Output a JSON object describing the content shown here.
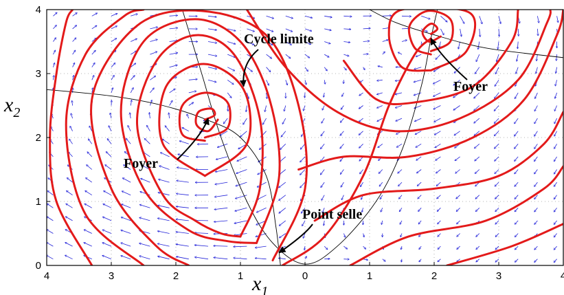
{
  "chart_data": {
    "type": "line",
    "title": "",
    "xlabel": "x",
    "xlabel_subscript": "1",
    "ylabel": "x",
    "ylabel_subscript": "2",
    "xlim": [
      -4,
      4
    ],
    "ylim": [
      0,
      4
    ],
    "x_tick_values": [
      -4,
      -3,
      -2,
      -1,
      0,
      1,
      2,
      3,
      4
    ],
    "x_tick_labels": [
      "4",
      "3",
      "2",
      "1",
      "0",
      "1",
      "2",
      "3",
      "4"
    ],
    "y_tick_values": [
      0,
      1,
      2,
      3,
      4
    ],
    "y_tick_labels": [
      "0",
      "1",
      "2",
      "3",
      "4"
    ],
    "grid": true,
    "colors": {
      "trajectories": "#e31a1a",
      "vector_field": "#1f1fd8",
      "nullclines": "#000000",
      "grid": "#9a9a9a"
    },
    "annotations": [
      {
        "text": "Cycle limite",
        "point_to": [
          -0.95,
          2.8
        ]
      },
      {
        "text": "Foyer",
        "point_to": [
          -1.5,
          2.3
        ]
      },
      {
        "text": "Foyer",
        "point_to": [
          1.95,
          3.55
        ]
      },
      {
        "text": "Point selle",
        "point_to": [
          -0.4,
          0.2
        ]
      }
    ],
    "equilibria": [
      {
        "kind": "focus",
        "x": -1.55,
        "y": 2.28
      },
      {
        "kind": "focus",
        "x": 1.95,
        "y": 3.62
      },
      {
        "kind": "saddle",
        "x": -0.4,
        "y": 0.1
      }
    ],
    "nullclines": [
      {
        "points": [
          [
            -4,
            2.75
          ],
          [
            -3,
            2.65
          ],
          [
            -2.2,
            2.5
          ],
          [
            -1.5,
            2.27
          ],
          [
            -1,
            2.0
          ],
          [
            -0.6,
            1.4
          ],
          [
            -0.45,
            0.6
          ],
          [
            -0.38,
            0.0
          ]
        ]
      },
      {
        "points": [
          [
            -1.9,
            4.0
          ],
          [
            -1.6,
            3.0
          ],
          [
            -1.3,
            2.0
          ],
          [
            -0.9,
            1.0
          ],
          [
            -0.5,
            0.35
          ],
          [
            0,
            0.02
          ],
          [
            0.5,
            0.3
          ],
          [
            1.1,
            1.0
          ],
          [
            1.5,
            1.8
          ],
          [
            1.8,
            2.8
          ],
          [
            1.95,
            3.55
          ],
          [
            2.05,
            4.0
          ]
        ]
      },
      {
        "points": [
          [
            1.0,
            4.0
          ],
          [
            1.4,
            3.8
          ],
          [
            1.95,
            3.62
          ],
          [
            2.8,
            3.4
          ],
          [
            4,
            3.25
          ]
        ]
      }
    ],
    "vector_field": {
      "grid_x": [
        -3.9,
        -3.6,
        -3.3,
        -3.0,
        -2.7,
        -2.4,
        -2.1,
        -1.8,
        -1.5,
        -1.2,
        -0.9,
        -0.6,
        -0.3,
        0.0,
        0.3,
        0.6,
        0.9,
        1.2,
        1.5,
        1.8,
        2.1,
        2.4,
        2.7,
        3.0,
        3.3,
        3.6,
        3.9
      ],
      "grid_y": [
        0.1,
        0.3,
        0.5,
        0.7,
        0.9,
        1.1,
        1.3,
        1.5,
        1.7,
        1.9,
        2.1,
        2.3,
        2.5,
        2.7,
        2.9,
        3.1,
        3.3,
        3.5,
        3.7,
        3.9
      ]
    },
    "series": [
      {
        "points": [
          [
            -1.55,
            2.28
          ],
          [
            -1.4,
            2.35
          ],
          [
            -1.45,
            2.45
          ],
          [
            -1.65,
            2.4
          ],
          [
            -1.68,
            2.2
          ],
          [
            -1.5,
            2.1
          ],
          [
            -1.35,
            2.28
          ]
        ]
      },
      {
        "points": [
          [
            -1.55,
            2.0
          ],
          [
            -1.2,
            2.15
          ],
          [
            -1.2,
            2.55
          ],
          [
            -1.55,
            2.7
          ],
          [
            -1.9,
            2.5
          ],
          [
            -1.9,
            2.05
          ],
          [
            -1.55,
            1.95
          ]
        ]
      },
      {
        "points": [
          [
            -1.55,
            1.4
          ],
          [
            -0.9,
            1.9
          ],
          [
            -0.95,
            2.75
          ],
          [
            -1.55,
            3.15
          ],
          [
            -2.15,
            2.8
          ],
          [
            -2.2,
            1.9
          ],
          [
            -1.55,
            1.4
          ]
        ]
      },
      {
        "points": [
          [
            -1.0,
            0.45
          ],
          [
            -0.7,
            1.2
          ],
          [
            -0.7,
            2.3
          ],
          [
            -1.1,
            3.3
          ],
          [
            -1.7,
            3.6
          ],
          [
            -2.3,
            3.2
          ],
          [
            -2.6,
            2.2
          ],
          [
            -2.2,
            1.1
          ],
          [
            -1.7,
            0.7
          ],
          [
            -1.3,
            0.5
          ],
          [
            -1.0,
            0.45
          ]
        ]
      },
      {
        "points": [
          [
            -0.75,
            0.35
          ],
          [
            -0.4,
            1.4
          ],
          [
            -0.55,
            2.6
          ],
          [
            -1.0,
            3.5
          ],
          [
            -1.7,
            3.85
          ],
          [
            -2.5,
            3.5
          ],
          [
            -2.85,
            2.4
          ],
          [
            -2.5,
            1.2
          ],
          [
            -1.8,
            0.55
          ],
          [
            -1.2,
            0.38
          ],
          [
            -0.75,
            0.35
          ]
        ]
      },
      {
        "points": [
          [
            -0.5,
            0.08
          ],
          [
            0.0,
            1.2
          ],
          [
            -0.1,
            2.5
          ],
          [
            -0.6,
            3.6
          ],
          [
            -1.6,
            3.98
          ],
          [
            -2.6,
            3.75
          ],
          [
            -3.3,
            2.6
          ],
          [
            -3.0,
            1.2
          ],
          [
            -2.3,
            0.3
          ],
          [
            -1.8,
            0.0
          ]
        ]
      },
      {
        "points": [
          [
            -2.5,
            0.0
          ],
          [
            -3.4,
            0.8
          ],
          [
            -3.7,
            2.2
          ],
          [
            -3.4,
            3.3
          ],
          [
            -2.8,
            3.9
          ],
          [
            -2.5,
            4.0
          ]
        ]
      },
      {
        "points": [
          [
            -3.3,
            0.0
          ],
          [
            -3.85,
            1.0
          ],
          [
            -3.95,
            2.0
          ],
          [
            -3.85,
            3.0
          ],
          [
            -3.7,
            3.8
          ],
          [
            -3.6,
            4.0
          ]
        ]
      },
      {
        "points": [
          [
            -0.35,
            0.0
          ],
          [
            0.3,
            0.45
          ],
          [
            0.9,
            1.4
          ],
          [
            1.3,
            2.5
          ],
          [
            1.7,
            3.3
          ],
          [
            1.95,
            3.55
          ]
        ]
      },
      {
        "points": [
          [
            1.95,
            3.62
          ],
          [
            2.05,
            3.7
          ],
          [
            1.95,
            3.78
          ],
          [
            1.82,
            3.65
          ],
          [
            1.92,
            3.5
          ],
          [
            2.1,
            3.58
          ]
        ]
      },
      {
        "points": [
          [
            1.95,
            3.35
          ],
          [
            2.25,
            3.5
          ],
          [
            2.25,
            3.85
          ],
          [
            1.9,
            3.98
          ],
          [
            1.62,
            3.75
          ],
          [
            1.7,
            3.4
          ],
          [
            1.95,
            3.3
          ]
        ]
      },
      {
        "points": [
          [
            1.95,
            3.05
          ],
          [
            2.5,
            3.35
          ],
          [
            2.55,
            3.95
          ],
          [
            1.5,
            4.0
          ],
          [
            1.3,
            3.6
          ],
          [
            1.5,
            3.1
          ],
          [
            1.95,
            3.05
          ]
        ]
      },
      {
        "points": [
          [
            0.6,
            3.2
          ],
          [
            1.1,
            2.6
          ],
          [
            1.7,
            2.55
          ],
          [
            2.6,
            2.8
          ],
          [
            3.2,
            3.5
          ],
          [
            3.3,
            4.0
          ]
        ]
      },
      {
        "points": [
          [
            -0.9,
            4.0
          ],
          [
            -0.3,
            3.1
          ],
          [
            0.5,
            2.4
          ],
          [
            1.4,
            2.1
          ],
          [
            2.4,
            2.3
          ],
          [
            3.3,
            2.9
          ],
          [
            3.75,
            3.8
          ],
          [
            3.8,
            4.0
          ]
        ]
      },
      {
        "points": [
          [
            -0.1,
            1.5
          ],
          [
            0.6,
            1.7
          ],
          [
            1.6,
            1.7
          ],
          [
            2.6,
            2.0
          ],
          [
            3.4,
            2.6
          ],
          [
            3.9,
            3.6
          ],
          [
            4.0,
            4.0
          ]
        ]
      },
      {
        "points": [
          [
            0.15,
            0.7
          ],
          [
            0.9,
            1.1
          ],
          [
            2.0,
            1.2
          ],
          [
            3.0,
            1.4
          ],
          [
            3.7,
            1.9
          ],
          [
            4.0,
            2.4
          ]
        ]
      },
      {
        "points": [
          [
            0.7,
            0.0
          ],
          [
            1.6,
            0.45
          ],
          [
            2.8,
            0.7
          ],
          [
            3.7,
            1.2
          ],
          [
            4.0,
            1.55
          ]
        ]
      },
      {
        "points": [
          [
            2.2,
            0.0
          ],
          [
            3.2,
            0.3
          ],
          [
            4.0,
            0.65
          ]
        ]
      }
    ]
  }
}
